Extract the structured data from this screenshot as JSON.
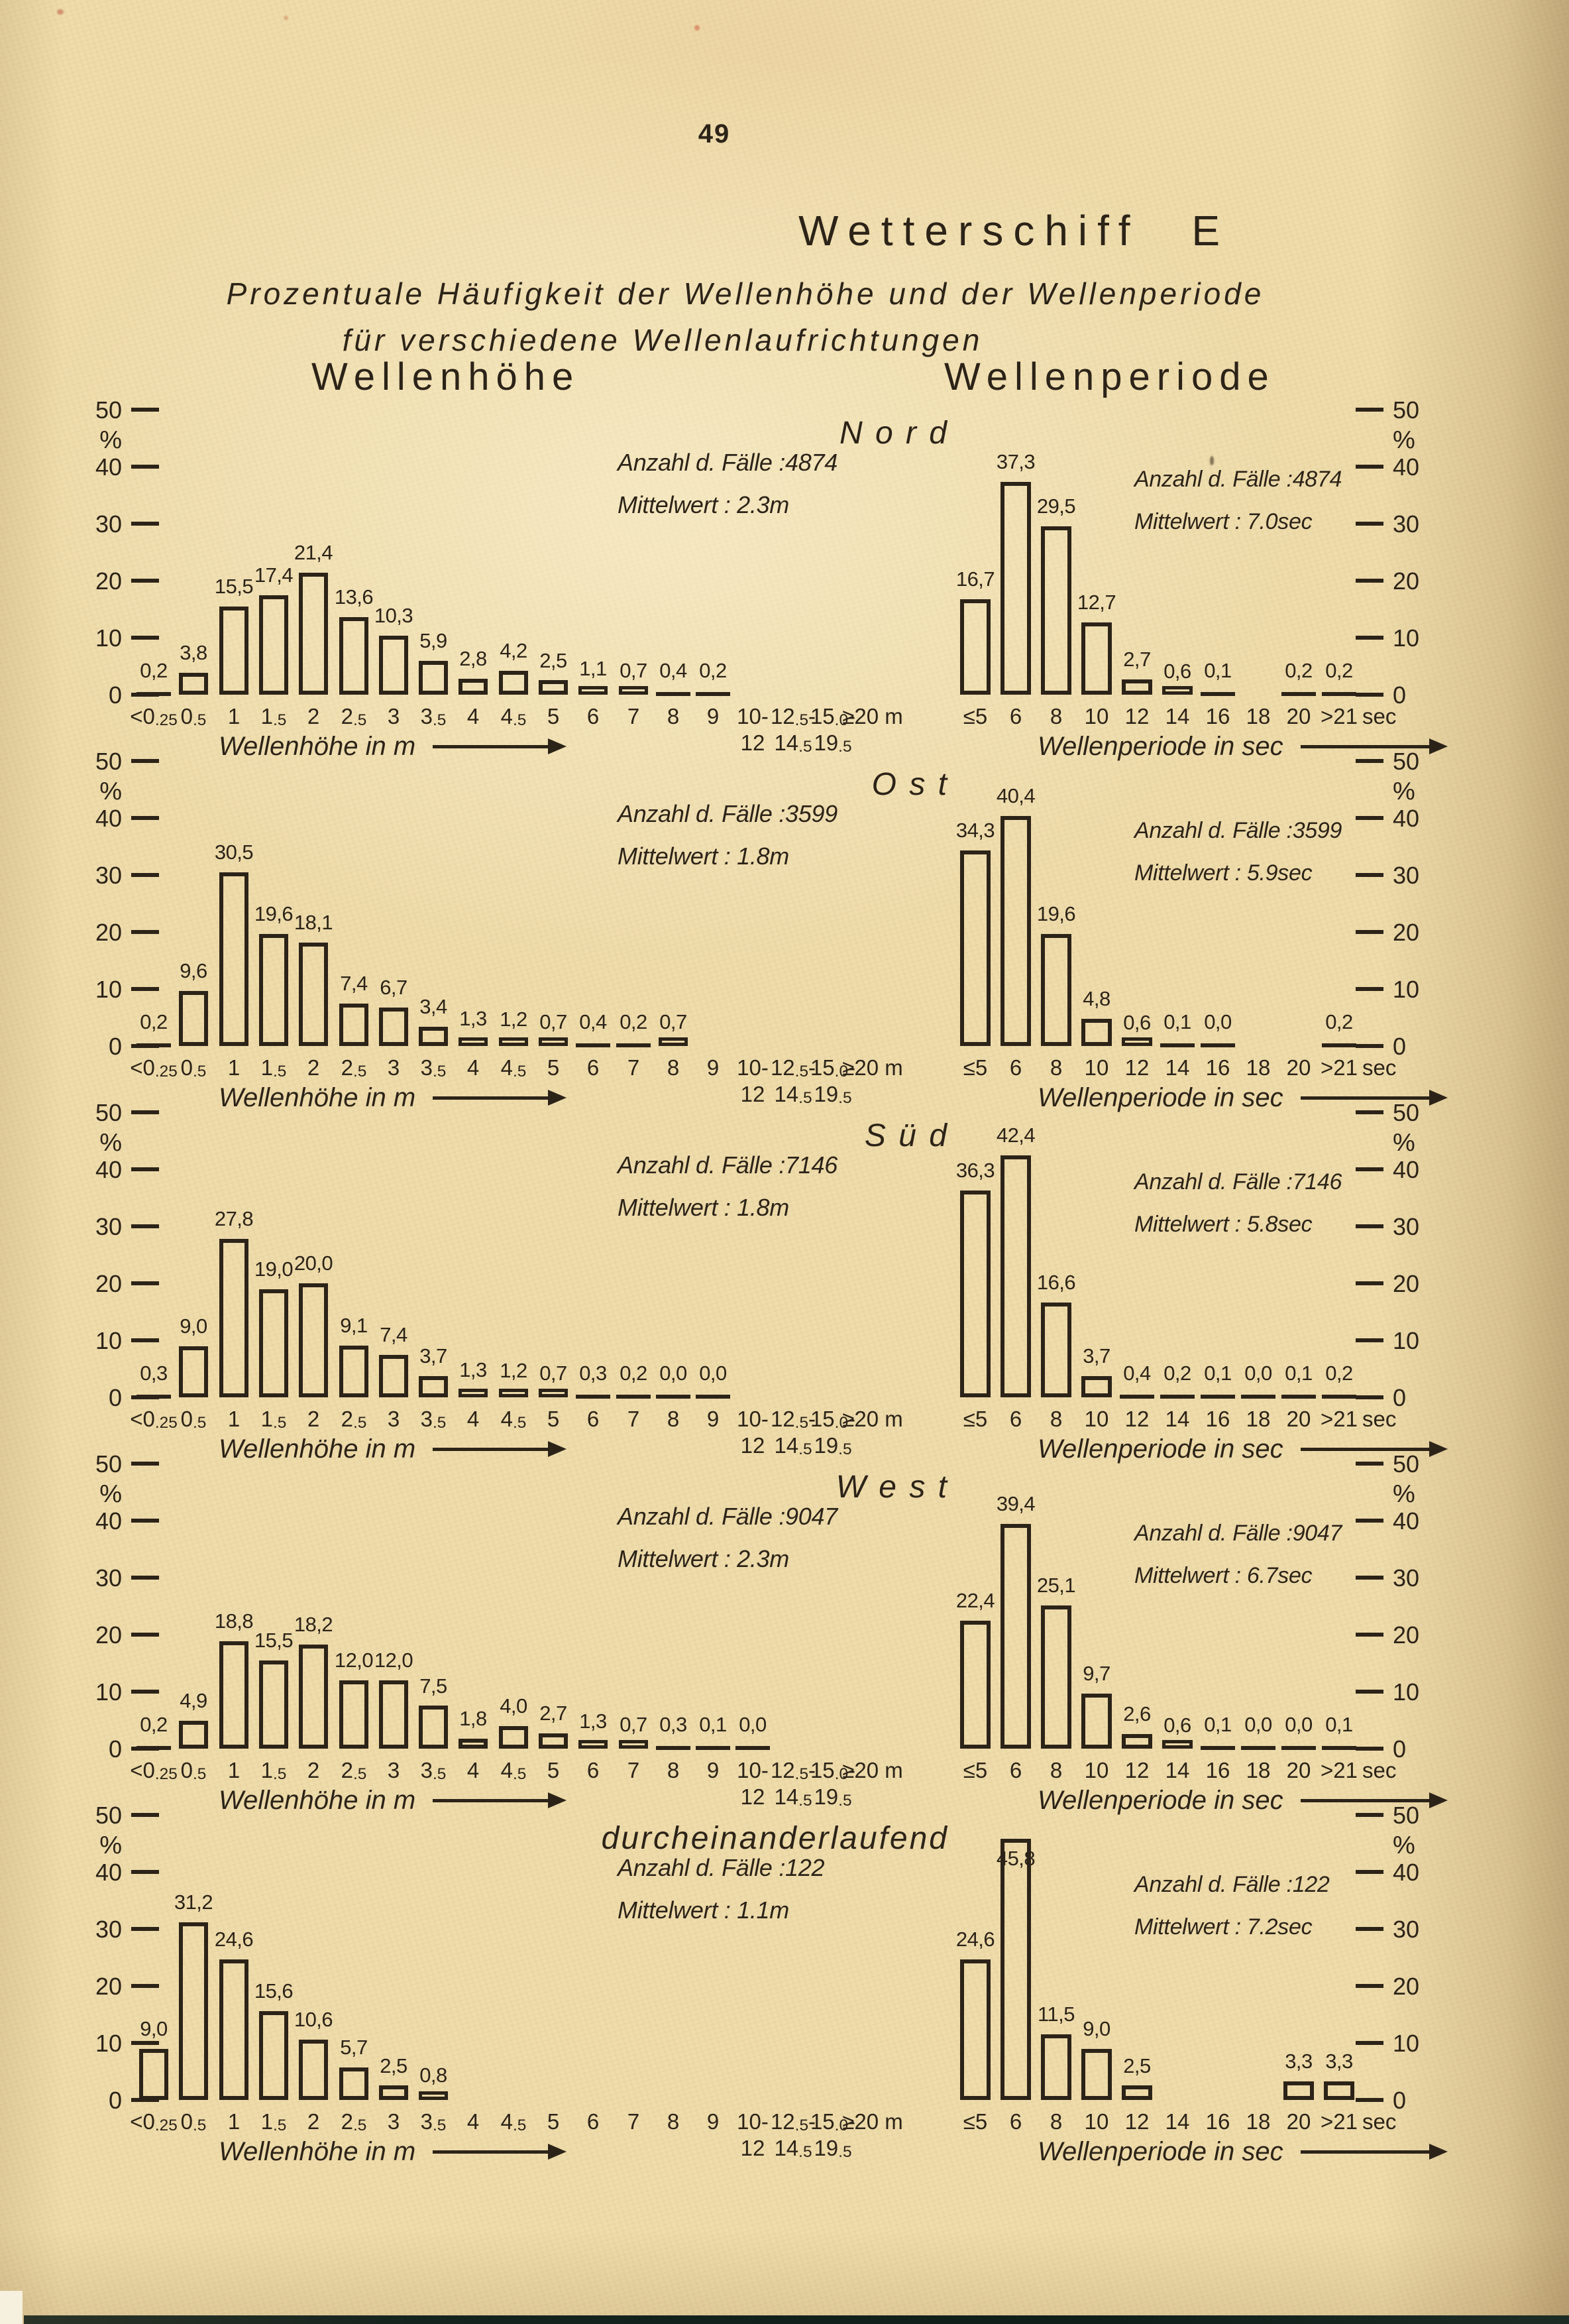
{
  "page": {
    "number": "49",
    "title": "Wetterschiff E",
    "subtitle_line1": "Prozentuale Häufigkeit der Wellenhöhe und der Wellenperiode",
    "subtitle_line2": "für verschiedene Wellenlaufrichtungen",
    "column_headers": {
      "left": "Wellenhöhe",
      "right": "Wellenperiode"
    }
  },
  "labels": {
    "anzahl": "Anzahl d. Fälle :",
    "mittelwert": "Mittelwert :",
    "percent": "%",
    "xaxis_left_title": "Wellenhöhe in m",
    "xaxis_right_title": "Wellenperiode in sec",
    "right_unit": "sec"
  },
  "axes": {
    "ylim": [
      0,
      50
    ],
    "y_ticks": [
      50,
      40,
      30,
      20,
      10,
      0
    ],
    "y_unit": "%",
    "left_categories": [
      {
        "l1": "<0.25"
      },
      {
        "l1": "0.5"
      },
      {
        "l1": "1"
      },
      {
        "l1": "1.5"
      },
      {
        "l1": "2"
      },
      {
        "l1": "2.5"
      },
      {
        "l1": "3"
      },
      {
        "l1": "3.5"
      },
      {
        "l1": "4"
      },
      {
        "l1": "4.5"
      },
      {
        "l1": "5"
      },
      {
        "l1": "6"
      },
      {
        "l1": "7"
      },
      {
        "l1": "8"
      },
      {
        "l1": "9"
      },
      {
        "l1": "10-",
        "l2": "12"
      },
      {
        "l1": "12.5-",
        "l2": "14.5"
      },
      {
        "l1": "15.0-",
        "l2": "19.5"
      },
      {
        "l1": "≥20 m"
      }
    ],
    "right_categories": [
      "≤5",
      "6",
      "8",
      "10",
      "12",
      "14",
      "16",
      "18",
      "20",
      ">21"
    ]
  },
  "chart_data": [
    {
      "direction": "Nord",
      "direction_display": "N o r d",
      "left": {
        "type": "bar",
        "xlabel": "Wellenhöhe in m",
        "ylabel": "%",
        "ylim": [
          0,
          50
        ],
        "n_cases": "4874",
        "mean": "2.3m",
        "values": [
          0.2,
          3.8,
          15.5,
          17.4,
          21.4,
          13.6,
          10.3,
          5.9,
          2.8,
          4.2,
          2.5,
          1.1,
          0.7,
          0.4,
          0.2,
          null,
          null,
          null,
          null
        ],
        "value_labels": [
          "0,2",
          "3,8",
          "15,5",
          "17,4",
          "21,4",
          "13,6",
          "10,3",
          "5,9",
          "2,8",
          "4,2",
          "2,5",
          "1,1",
          "0,7",
          "0,4",
          "0,2",
          "",
          "",
          "",
          ""
        ]
      },
      "right": {
        "type": "bar",
        "xlabel": "Wellenperiode in sec",
        "ylabel": "%",
        "ylim": [
          0,
          50
        ],
        "n_cases": "4874",
        "mean": "7.0sec",
        "values": [
          16.7,
          37.3,
          29.5,
          12.7,
          2.7,
          0.6,
          0.1,
          null,
          0.2,
          0.2
        ],
        "value_labels": [
          "16,7",
          "37,3",
          "29,5",
          "12,7",
          "2,7",
          "0,6",
          "0,1",
          "",
          "0,2",
          "0,2"
        ]
      }
    },
    {
      "direction": "Ost",
      "direction_display": "O s t",
      "left": {
        "type": "bar",
        "xlabel": "Wellenhöhe in m",
        "ylabel": "%",
        "ylim": [
          0,
          50
        ],
        "n_cases": "3599",
        "mean": "1.8m",
        "values": [
          0.2,
          9.6,
          30.5,
          19.6,
          18.1,
          7.4,
          6.7,
          3.4,
          1.3,
          1.2,
          0.7,
          0.4,
          0.2,
          0.7,
          null,
          null,
          null,
          null,
          null
        ],
        "value_labels": [
          "0,2",
          "9,6",
          "30,5",
          "19,6",
          "18,1",
          "7,4",
          "6,7",
          "3,4",
          "1,3",
          "1,2",
          "0,7",
          "0,4",
          "0,2",
          "0,7",
          "",
          "",
          "",
          "",
          ""
        ]
      },
      "right": {
        "type": "bar",
        "xlabel": "Wellenperiode in sec",
        "ylabel": "%",
        "ylim": [
          0,
          50
        ],
        "n_cases": "3599",
        "mean": "5.9sec",
        "values": [
          34.3,
          40.4,
          19.6,
          4.8,
          0.6,
          0.1,
          0.0,
          null,
          null,
          0.2
        ],
        "value_labels": [
          "34,3",
          "40,4",
          "19,6",
          "4,8",
          "0,6",
          "0,1",
          "0,0",
          "",
          "",
          "0,2"
        ]
      }
    },
    {
      "direction": "Süd",
      "direction_display": "S ü d",
      "left": {
        "type": "bar",
        "xlabel": "Wellenhöhe in m",
        "ylabel": "%",
        "ylim": [
          0,
          50
        ],
        "n_cases": "7146",
        "mean": "1.8m",
        "values": [
          0.3,
          9.0,
          27.8,
          19.0,
          20.0,
          9.1,
          7.4,
          3.7,
          1.3,
          1.2,
          0.7,
          0.3,
          0.2,
          0.0,
          0.0,
          null,
          null,
          null,
          null
        ],
        "value_labels": [
          "0,3",
          "9,0",
          "27,8",
          "19,0",
          "20,0",
          "9,1",
          "7,4",
          "3,7",
          "1,3",
          "1,2",
          "0,7",
          "0,3",
          "0,2",
          "0,0",
          "0,0",
          "",
          "",
          "",
          ""
        ]
      },
      "right": {
        "type": "bar",
        "xlabel": "Wellenperiode in sec",
        "ylabel": "%",
        "ylim": [
          0,
          50
        ],
        "n_cases": "7146",
        "mean": "5.8sec",
        "values": [
          36.3,
          42.4,
          16.6,
          3.7,
          0.4,
          0.2,
          0.1,
          0.0,
          0.1,
          0.2
        ],
        "value_labels": [
          "36,3",
          "42,4",
          "16,6",
          "3,7",
          "0,4",
          "0,2",
          "0,1",
          "0,0",
          "0,1",
          "0,2"
        ]
      }
    },
    {
      "direction": "West",
      "direction_display": "W e s t",
      "left": {
        "type": "bar",
        "xlabel": "Wellenhöhe in m",
        "ylabel": "%",
        "ylim": [
          0,
          50
        ],
        "n_cases": "9047",
        "mean": "2.3m",
        "values": [
          0.2,
          4.9,
          18.8,
          15.5,
          18.2,
          12.0,
          12.0,
          7.5,
          1.8,
          4.0,
          2.7,
          1.3,
          0.7,
          0.3,
          0.1,
          0.0,
          null,
          null,
          null
        ],
        "value_labels": [
          "0,2",
          "4,9",
          "18,8",
          "15,5",
          "18,2",
          "12,0",
          "12,0",
          "7,5",
          "1,8",
          "4,0",
          "2,7",
          "1,3",
          "0,7",
          "0,3",
          "0,1",
          "0,0",
          "",
          "",
          ""
        ]
      },
      "right": {
        "type": "bar",
        "xlabel": "Wellenperiode in sec",
        "ylabel": "%",
        "ylim": [
          0,
          50
        ],
        "n_cases": "9047",
        "mean": "6.7sec",
        "values": [
          22.4,
          39.4,
          25.1,
          9.7,
          2.6,
          0.6,
          0.1,
          0.0,
          0.0,
          0.1
        ],
        "value_labels": [
          "22,4",
          "39,4",
          "25,1",
          "9,7",
          "2,6",
          "0,6",
          "0,1",
          "0,0",
          "0,0",
          "0,1"
        ]
      }
    },
    {
      "direction": "durcheinanderlaufend",
      "direction_display": "durcheinanderlaufend",
      "left": {
        "type": "bar",
        "xlabel": "Wellenhöhe in m",
        "ylabel": "%",
        "ylim": [
          0,
          50
        ],
        "n_cases": "122",
        "mean": "1.1m",
        "values": [
          9.0,
          31.2,
          24.6,
          15.6,
          10.6,
          5.7,
          2.5,
          0.8,
          null,
          null,
          null,
          null,
          null,
          null,
          null,
          null,
          null,
          null,
          null
        ],
        "value_labels": [
          "9,0",
          "31,2",
          "24,6",
          "15,6",
          "10,6",
          "5,7",
          "2,5",
          "0,8",
          "",
          "",
          "",
          "",
          "",
          "",
          "",
          "",
          "",
          "",
          ""
        ]
      },
      "right": {
        "type": "bar",
        "xlabel": "Wellenperiode in sec",
        "ylabel": "%",
        "ylim": [
          0,
          50
        ],
        "n_cases": "122",
        "mean": "7.2sec",
        "values": [
          24.6,
          45.8,
          11.5,
          9.0,
          2.5,
          null,
          null,
          null,
          3.3,
          3.3
        ],
        "value_labels": [
          "24,6",
          "45,8",
          "11,5",
          "9,0",
          "2,5",
          "",
          "",
          "",
          "3,3",
          "3,3"
        ]
      }
    }
  ]
}
